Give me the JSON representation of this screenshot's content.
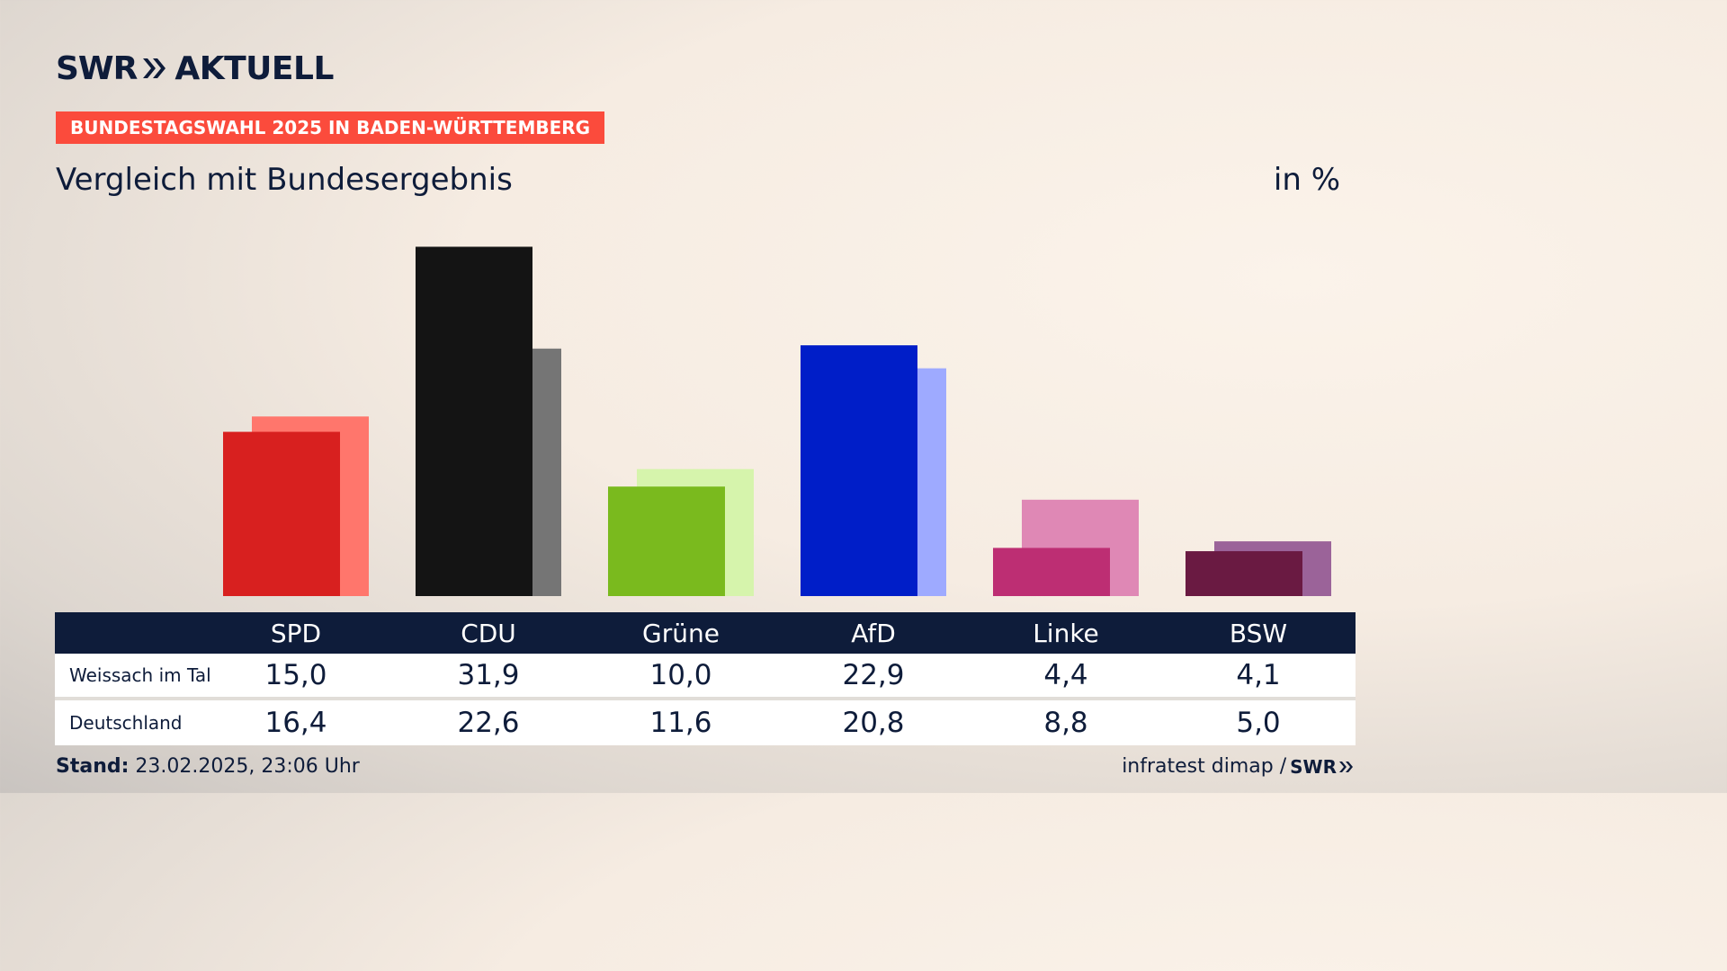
{
  "header": {
    "logo_left": "SWR",
    "logo_right": "AKTUELL",
    "banner": "BUNDESTAGSWAHL 2025 IN BADEN-WÜRTTEMBERG",
    "subtitle": "Vergleich mit Bundesergebnis",
    "unit": "in %"
  },
  "chart_data": {
    "type": "bar",
    "title": "Vergleich mit Bundesergebnis",
    "ylabel": "in %",
    "categories": [
      "SPD",
      "CDU",
      "Grüne",
      "AfD",
      "Linke",
      "BSW"
    ],
    "series": [
      {
        "name": "Weissach im Tal",
        "values": [
          15.0,
          31.9,
          10.0,
          22.9,
          4.4,
          4.1
        ]
      },
      {
        "name": "Deutschland",
        "values": [
          16.4,
          22.6,
          11.6,
          20.8,
          8.8,
          5.0
        ]
      }
    ],
    "colors_primary": [
      "#d8201f",
      "#141414",
      "#7aba1e",
      "#001ec8",
      "#bd2e73",
      "#6a1a42"
    ],
    "colors_secondary": [
      "#ff766c",
      "#757575",
      "#d6f4ac",
      "#9eaaff",
      "#df88b5",
      "#9b6399"
    ]
  },
  "table": {
    "rows": [
      {
        "label": "Weissach im Tal",
        "values": [
          "15,0",
          "31,9",
          "10,0",
          "22,9",
          "4,4",
          "4,1"
        ]
      },
      {
        "label": "Deutschland",
        "values": [
          "16,4",
          "22,6",
          "11,6",
          "20,8",
          "8,8",
          "5,0"
        ]
      }
    ]
  },
  "footer": {
    "stand_label": "Stand:",
    "stand_value": "23.02.2025, 23:06 Uhr",
    "source": "infratest dimap /",
    "source_logo": "SWR"
  }
}
